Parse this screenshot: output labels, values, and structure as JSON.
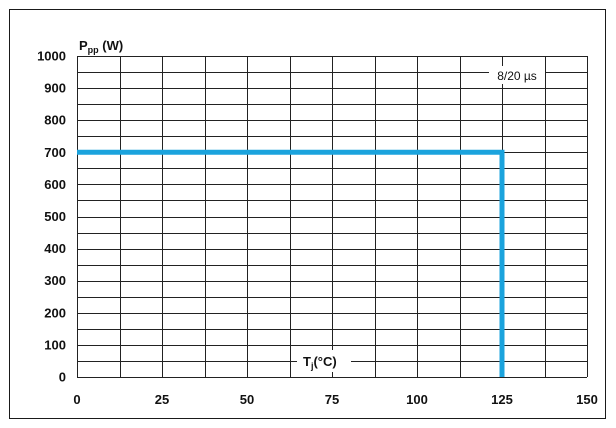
{
  "chart_data": {
    "type": "line",
    "ylabel": {
      "main": "P",
      "sub": "pp",
      "unit": " (W)"
    },
    "xlabel": {
      "main": "T",
      "sub": "j",
      "unit": "(°C)"
    },
    "annotation": "8/20 µs",
    "xlim": [
      0,
      150
    ],
    "ylim": [
      0,
      1000
    ],
    "x_ticks": [
      0,
      25,
      50,
      75,
      100,
      125,
      150
    ],
    "y_ticks": [
      0,
      100,
      200,
      300,
      400,
      500,
      600,
      700,
      800,
      900,
      1000
    ],
    "x_minor_step": 12.5,
    "y_minor_step": 50,
    "grid": true,
    "series": [
      {
        "color": "#1ba3dd",
        "points": [
          [
            0,
            700
          ],
          [
            125,
            700
          ],
          [
            125,
            0
          ]
        ]
      }
    ]
  }
}
